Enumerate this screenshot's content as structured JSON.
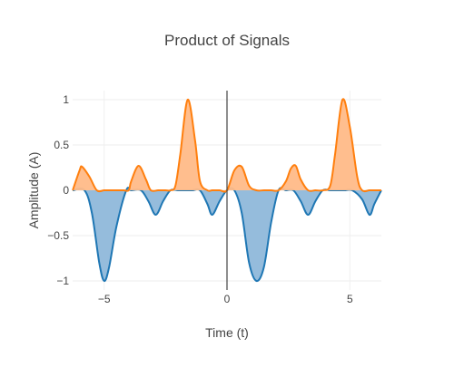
{
  "chart_data": {
    "type": "area",
    "title": "Product of Signals",
    "xlabel": "Time (t)",
    "ylabel": "Amplitude (A)",
    "xlim": [
      -6.283,
      6.283
    ],
    "ylim": [
      -1.1,
      1.1
    ],
    "grid": true,
    "legend": "none",
    "x_ticks": [
      -5,
      0,
      5
    ],
    "x_tick_labels": [
      "−5",
      "0",
      "5"
    ],
    "y_ticks": [
      1,
      0.5,
      0,
      -0.5,
      -1
    ],
    "y_tick_labels": [
      "1",
      "0.5",
      "0",
      "−0.5",
      "−1"
    ],
    "series": [
      {
        "color": "#ff7f0e",
        "fill": "#ffbb88",
        "x": [
          -6.28,
          -6.0,
          -5.9,
          -5.6,
          -5.3,
          -5.0,
          -4.8,
          -4.5,
          -4.2,
          -4.0,
          -3.9,
          -3.6,
          -3.3,
          -3.1,
          -2.8,
          -2.5,
          -2.3,
          -2.1,
          -1.9,
          -1.6,
          -1.3,
          -1.1,
          -0.8,
          -0.6,
          -0.3,
          0.0,
          0.3,
          0.6,
          0.9,
          1.2,
          1.5,
          1.8,
          2.1,
          2.4,
          2.6,
          2.8,
          3.0,
          3.3,
          3.6,
          3.9,
          4.2,
          4.4,
          4.7,
          5.0,
          5.3,
          5.5,
          5.8,
          6.0,
          6.28
        ],
        "y": [
          0.0,
          0.22,
          0.26,
          0.15,
          0.0,
          0.0,
          0.0,
          0.0,
          0.0,
          0.0,
          0.1,
          0.27,
          0.12,
          0.0,
          0.0,
          0.0,
          0.0,
          0.05,
          0.4,
          1.0,
          0.55,
          0.1,
          0.0,
          0.0,
          0.0,
          0.0,
          0.22,
          0.26,
          0.05,
          0.0,
          0.0,
          0.0,
          0.0,
          0.1,
          0.24,
          0.27,
          0.12,
          0.0,
          0.0,
          0.0,
          0.05,
          0.4,
          1.0,
          0.7,
          0.15,
          0.0,
          0.0,
          0.0,
          0.0
        ]
      },
      {
        "color": "#1f77b4",
        "fill": "#8fb8da",
        "x": [
          -6.28,
          -5.8,
          -5.5,
          -5.2,
          -5.0,
          -4.8,
          -4.5,
          -4.1,
          -3.9,
          -3.5,
          -3.2,
          -2.9,
          -2.6,
          -2.3,
          -2.0,
          -1.7,
          -1.4,
          -1.1,
          -0.8,
          -0.6,
          -0.3,
          0.0,
          0.3,
          0.6,
          0.9,
          1.2,
          1.5,
          1.8,
          2.1,
          2.4,
          2.7,
          3.0,
          3.3,
          3.6,
          3.9,
          4.2,
          4.5,
          4.8,
          5.1,
          5.5,
          5.8,
          6.0,
          6.28
        ],
        "y": [
          0.0,
          0.0,
          -0.25,
          -0.8,
          -1.0,
          -0.85,
          -0.4,
          0.0,
          0.0,
          0.0,
          -0.12,
          -0.27,
          -0.12,
          0.0,
          0.0,
          0.0,
          0.0,
          0.0,
          -0.15,
          -0.27,
          -0.12,
          0.0,
          0.0,
          -0.25,
          -0.8,
          -1.0,
          -0.85,
          -0.35,
          0.0,
          0.0,
          0.0,
          -0.12,
          -0.27,
          -0.12,
          0.0,
          0.0,
          0.0,
          0.0,
          0.0,
          -0.1,
          -0.27,
          -0.15,
          0.0
        ]
      }
    ]
  }
}
